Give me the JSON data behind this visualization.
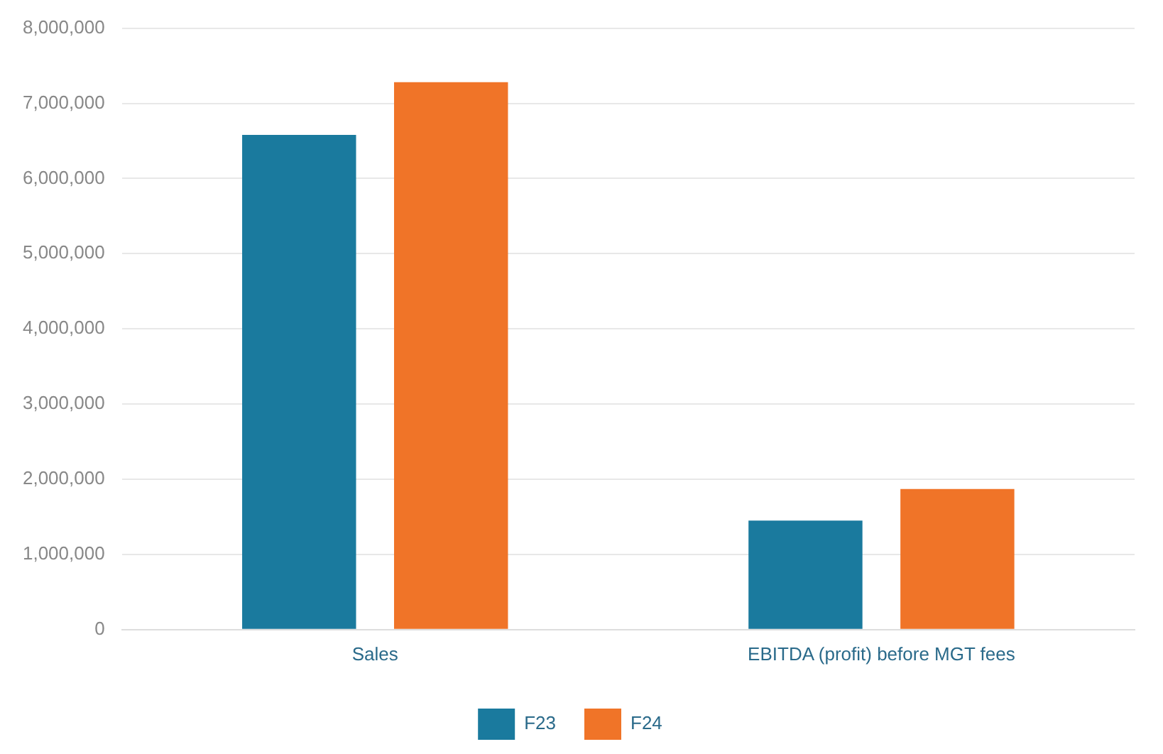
{
  "chart_data": {
    "type": "bar",
    "categories": [
      "Sales",
      "EBITDA (profit) before MGT fees"
    ],
    "series": [
      {
        "name": "F23",
        "color": "#1a7a9e",
        "values": [
          6580000,
          1450000
        ]
      },
      {
        "name": "F24",
        "color": "#f07428",
        "values": [
          7280000,
          1870000
        ]
      }
    ],
    "ylim": [
      0,
      8000000
    ],
    "yticks": [
      {
        "value": 0,
        "label": "0"
      },
      {
        "value": 1000000,
        "label": "1,000,000"
      },
      {
        "value": 2000000,
        "label": "2,000,000"
      },
      {
        "value": 3000000,
        "label": "3,000,000"
      },
      {
        "value": 4000000,
        "label": "4,000,000"
      },
      {
        "value": 5000000,
        "label": "5,000,000"
      },
      {
        "value": 6000000,
        "label": "6,000,000"
      },
      {
        "value": 7000000,
        "label": "7,000,000"
      },
      {
        "value": 8000000,
        "label": "8,000,000"
      }
    ],
    "grid": "y",
    "legend": "bottom"
  }
}
